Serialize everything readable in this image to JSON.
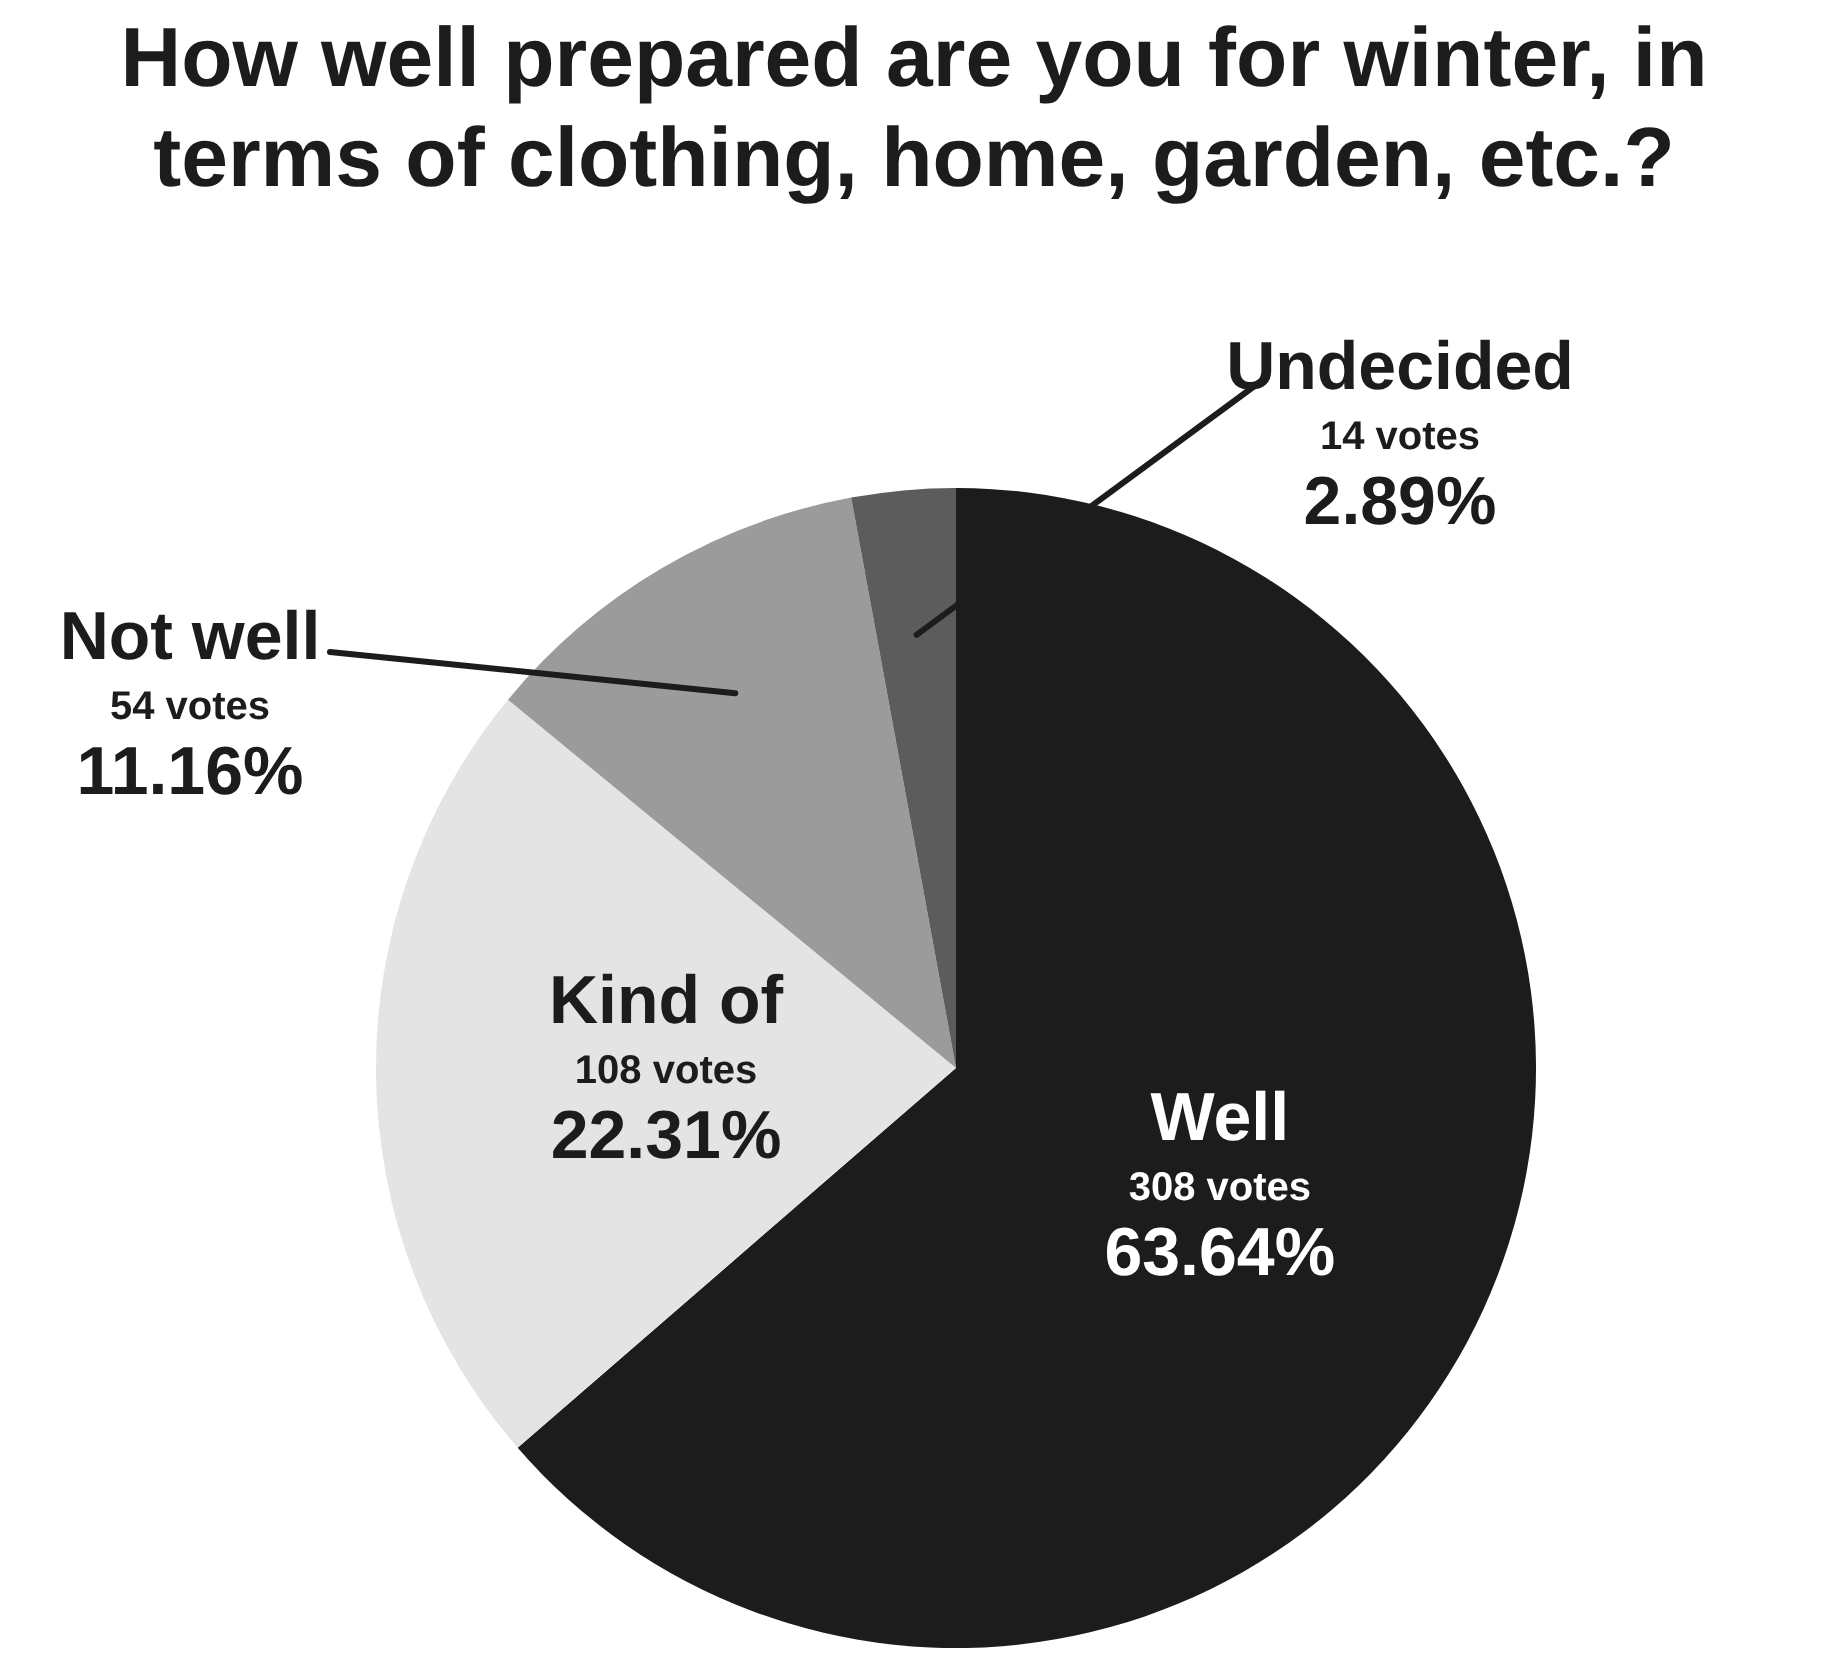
{
  "chart_data": {
    "type": "pie",
    "title": "How well prepared are you for winter, in terms of clothing, home, garden, etc.?",
    "categories": [
      "Well",
      "Kind of",
      "Not well",
      "Undecided"
    ],
    "values": [
      308,
      108,
      54,
      14
    ],
    "colors": [
      "#1c1c1c",
      "#e4e4e4",
      "#9b9b9b",
      "#5c5c5c"
    ],
    "value_labels": [
      "308 votes",
      "108 votes",
      "54 votes",
      "14 votes"
    ],
    "annotations": [
      {
        "text": "63.64%",
        "x": "Well"
      },
      {
        "text": "22.31%",
        "x": "Kind of"
      },
      {
        "text": "11.16%",
        "x": "Not well"
      },
      {
        "text": "2.89%",
        "x": "Undecided"
      }
    ],
    "legend": false
  }
}
